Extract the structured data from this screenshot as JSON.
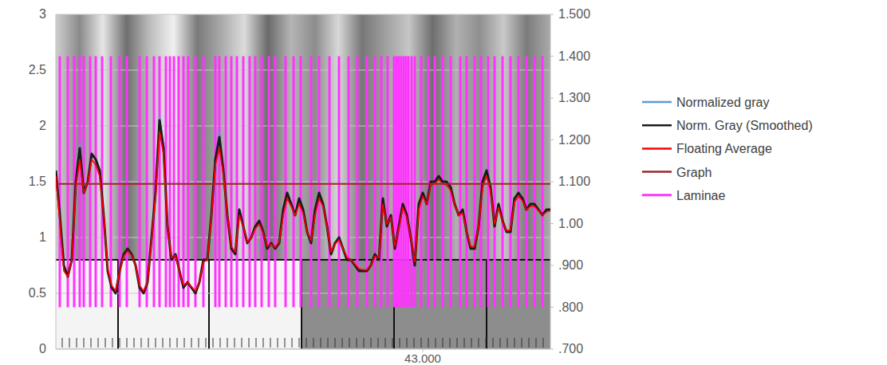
{
  "chart_data": {
    "type": "line",
    "x": [
      42.08,
      42.09,
      42.1,
      42.11,
      42.12,
      42.13,
      42.14,
      42.15,
      42.16,
      42.17,
      42.18,
      42.19,
      42.2,
      42.21,
      42.22,
      42.23,
      42.24,
      42.25,
      42.26,
      42.27,
      42.28,
      42.29,
      42.3,
      42.31,
      42.32,
      42.33,
      42.34,
      42.35,
      42.36,
      42.37,
      42.38,
      42.39,
      42.4,
      42.41,
      42.42,
      42.43,
      42.44,
      42.45,
      42.46,
      42.47,
      42.48,
      42.49,
      42.5,
      42.51,
      42.52,
      42.53,
      42.54,
      42.55,
      42.56,
      42.57,
      42.58,
      42.59,
      42.6,
      42.61,
      42.62,
      42.63,
      42.64,
      42.65,
      42.66,
      42.67,
      42.68,
      42.69,
      42.7,
      42.71,
      42.72,
      42.73,
      42.74,
      42.75,
      42.76,
      42.77,
      42.78,
      42.79,
      42.8,
      42.81,
      42.82,
      42.83,
      42.84,
      42.85,
      42.86,
      42.87,
      42.88,
      42.89,
      42.9,
      42.91,
      42.92,
      42.93,
      42.94,
      42.95,
      42.96,
      42.97,
      42.98,
      42.99,
      43.0,
      43.01,
      43.02,
      43.03,
      43.04,
      43.05,
      43.06,
      43.07,
      43.08,
      43.09,
      43.1,
      43.11,
      43.12,
      43.13,
      43.14,
      43.15,
      43.16,
      43.17,
      43.18,
      43.19,
      43.2,
      43.21,
      43.22,
      43.23,
      43.24,
      43.25,
      43.26,
      43.27,
      43.28,
      43.29,
      43.3,
      43.31,
      43.32
    ],
    "xlim": [
      42.08,
      43.32
    ],
    "xticks": [
      {
        "value": 43,
        "label": "43.000"
      }
    ],
    "ylim": [
      0,
      3
    ],
    "yticks": [
      0,
      0.5,
      1,
      1.5,
      2,
      2.5,
      3
    ],
    "y2lim": [
      0.7,
      1.5
    ],
    "y2ticks": [
      {
        "value": 1.5,
        "label": "1.500"
      },
      {
        "value": 1.4,
        "label": "1.400"
      },
      {
        "value": 1.3,
        "label": "1.300"
      },
      {
        "value": 1.2,
        "label": "1.200"
      },
      {
        "value": 1.1,
        "label": "1.100"
      },
      {
        "value": 1.0,
        "label": "1.00"
      },
      {
        "value": 0.9,
        "label": ".900"
      },
      {
        "value": 0.8,
        "label": ".800"
      },
      {
        "value": 0.7,
        "label": ".700"
      }
    ],
    "grid": true,
    "legend": "right",
    "series": [
      {
        "name": "Normalized gray",
        "color": "#5b9bd5",
        "values": [
          1.6,
          1.2,
          0.75,
          0.65,
          0.8,
          1.5,
          1.85,
          1.4,
          1.5,
          1.75,
          1.7,
          1.6,
          1.2,
          0.7,
          0.55,
          0.5,
          0.7,
          0.85,
          0.9,
          0.85,
          0.75,
          0.55,
          0.5,
          0.6,
          1.0,
          1.4,
          2.1,
          1.8,
          1.1,
          0.8,
          0.85,
          0.7,
          0.55,
          0.6,
          0.55,
          0.5,
          0.6,
          0.8,
          0.8,
          1.2,
          1.7,
          1.95,
          1.6,
          1.2,
          0.9,
          0.85,
          1.25,
          1.1,
          0.95,
          1.0,
          1.1,
          1.15,
          1.05,
          0.9,
          0.95,
          0.9,
          0.95,
          1.25,
          1.4,
          1.3,
          1.2,
          1.35,
          1.25,
          1.05,
          0.95,
          1.25,
          1.4,
          1.3,
          1.1,
          0.85,
          0.95,
          1.0,
          0.9,
          0.8,
          0.8,
          0.75,
          0.7,
          0.7,
          0.7,
          0.75,
          0.85,
          0.8,
          1.35,
          1.1,
          1.2,
          0.9,
          1.1,
          1.3,
          1.2,
          1.0,
          0.75,
          1.3,
          1.4,
          1.3,
          1.5,
          1.5,
          1.55,
          1.5,
          1.5,
          1.45,
          1.3,
          1.2,
          1.25,
          1.05,
          0.9,
          0.9,
          1.1,
          1.5,
          1.62,
          1.45,
          1.1,
          1.3,
          1.15,
          1.05,
          1.05,
          1.35,
          1.4,
          1.35,
          1.25,
          1.3,
          1.3,
          1.25,
          1.2,
          1.25,
          1.25
        ]
      },
      {
        "name": "Norm. Gray (Smoothed)",
        "color": "#1a1a1a",
        "values": [
          1.6,
          1.2,
          0.75,
          0.65,
          0.8,
          1.5,
          1.8,
          1.4,
          1.5,
          1.75,
          1.7,
          1.6,
          1.2,
          0.7,
          0.55,
          0.5,
          0.7,
          0.85,
          0.9,
          0.85,
          0.75,
          0.55,
          0.5,
          0.6,
          1.0,
          1.4,
          2.05,
          1.8,
          1.1,
          0.8,
          0.85,
          0.7,
          0.55,
          0.6,
          0.55,
          0.5,
          0.6,
          0.8,
          0.8,
          1.2,
          1.7,
          1.9,
          1.6,
          1.2,
          0.9,
          0.85,
          1.25,
          1.1,
          0.95,
          1.0,
          1.1,
          1.15,
          1.05,
          0.9,
          0.95,
          0.9,
          0.95,
          1.25,
          1.4,
          1.3,
          1.2,
          1.35,
          1.25,
          1.05,
          0.95,
          1.25,
          1.4,
          1.3,
          1.1,
          0.85,
          0.95,
          1.0,
          0.9,
          0.8,
          0.8,
          0.75,
          0.7,
          0.7,
          0.7,
          0.75,
          0.85,
          0.8,
          1.35,
          1.1,
          1.2,
          0.9,
          1.1,
          1.3,
          1.2,
          1.0,
          0.75,
          1.3,
          1.4,
          1.3,
          1.5,
          1.5,
          1.55,
          1.5,
          1.5,
          1.45,
          1.3,
          1.2,
          1.25,
          1.05,
          0.9,
          0.9,
          1.1,
          1.5,
          1.6,
          1.45,
          1.1,
          1.3,
          1.15,
          1.05,
          1.05,
          1.35,
          1.4,
          1.35,
          1.25,
          1.3,
          1.3,
          1.25,
          1.2,
          1.25,
          1.25
        ]
      },
      {
        "name": "Floating Average",
        "color": "#ff0000",
        "values": [
          1.55,
          1.15,
          0.7,
          0.65,
          0.8,
          1.45,
          1.7,
          1.4,
          1.5,
          1.7,
          1.65,
          1.55,
          1.2,
          0.72,
          0.57,
          0.52,
          0.7,
          0.83,
          0.88,
          0.84,
          0.75,
          0.57,
          0.52,
          0.6,
          0.98,
          1.37,
          1.95,
          1.75,
          1.1,
          0.82,
          0.84,
          0.7,
          0.57,
          0.6,
          0.56,
          0.52,
          0.6,
          0.78,
          0.8,
          1.18,
          1.65,
          1.8,
          1.57,
          1.2,
          0.92,
          0.87,
          1.2,
          1.1,
          0.96,
          1.0,
          1.08,
          1.12,
          1.04,
          0.92,
          0.94,
          0.91,
          0.96,
          1.2,
          1.35,
          1.28,
          1.2,
          1.3,
          1.22,
          1.05,
          0.97,
          1.2,
          1.35,
          1.28,
          1.1,
          0.87,
          0.94,
          0.98,
          0.9,
          0.82,
          0.8,
          0.76,
          0.72,
          0.71,
          0.71,
          0.75,
          0.83,
          0.82,
          1.3,
          1.12,
          1.18,
          0.92,
          1.08,
          1.27,
          1.18,
          1.0,
          0.78,
          1.25,
          1.37,
          1.3,
          1.47,
          1.48,
          1.52,
          1.48,
          1.47,
          1.42,
          1.3,
          1.2,
          1.22,
          1.05,
          0.92,
          0.92,
          1.1,
          1.45,
          1.55,
          1.42,
          1.12,
          1.27,
          1.14,
          1.06,
          1.07,
          1.32,
          1.37,
          1.33,
          1.25,
          1.28,
          1.28,
          1.24,
          1.2,
          1.23,
          1.24
        ]
      },
      {
        "name": "Graph",
        "color": "#a0252a",
        "x": [
          42.08,
          43.32
        ],
        "values": [
          1.48,
          1.48
        ]
      },
      {
        "name": "Laminae",
        "color": "#ff33ff",
        "type": "vlines",
        "axis": "y2",
        "ymin": 0.8,
        "ymax": 1.4,
        "x": [
          42.09,
          42.11,
          42.126,
          42.14,
          42.15,
          42.166,
          42.18,
          42.196,
          42.218,
          42.24,
          42.258,
          42.29,
          42.308,
          42.326,
          42.34,
          42.356,
          42.366,
          42.376,
          42.388,
          42.4,
          42.412,
          42.43,
          42.45,
          42.48,
          42.49,
          42.506,
          42.52,
          42.534,
          42.55,
          42.566,
          42.58,
          42.596,
          42.614,
          42.63,
          42.656,
          42.676,
          42.694,
          42.72,
          42.74,
          42.766,
          42.79,
          42.814,
          42.836,
          42.86,
          42.88,
          42.896,
          42.912,
          42.928,
          42.934,
          42.94,
          42.946,
          42.952,
          42.958,
          42.964,
          42.972,
          42.98,
          42.996,
          43.014,
          43.03,
          43.05,
          43.07,
          43.094,
          43.11,
          43.13,
          43.146,
          43.164,
          43.18,
          43.2,
          43.22,
          43.24,
          43.26,
          43.28,
          43.3
        ]
      }
    ]
  }
}
